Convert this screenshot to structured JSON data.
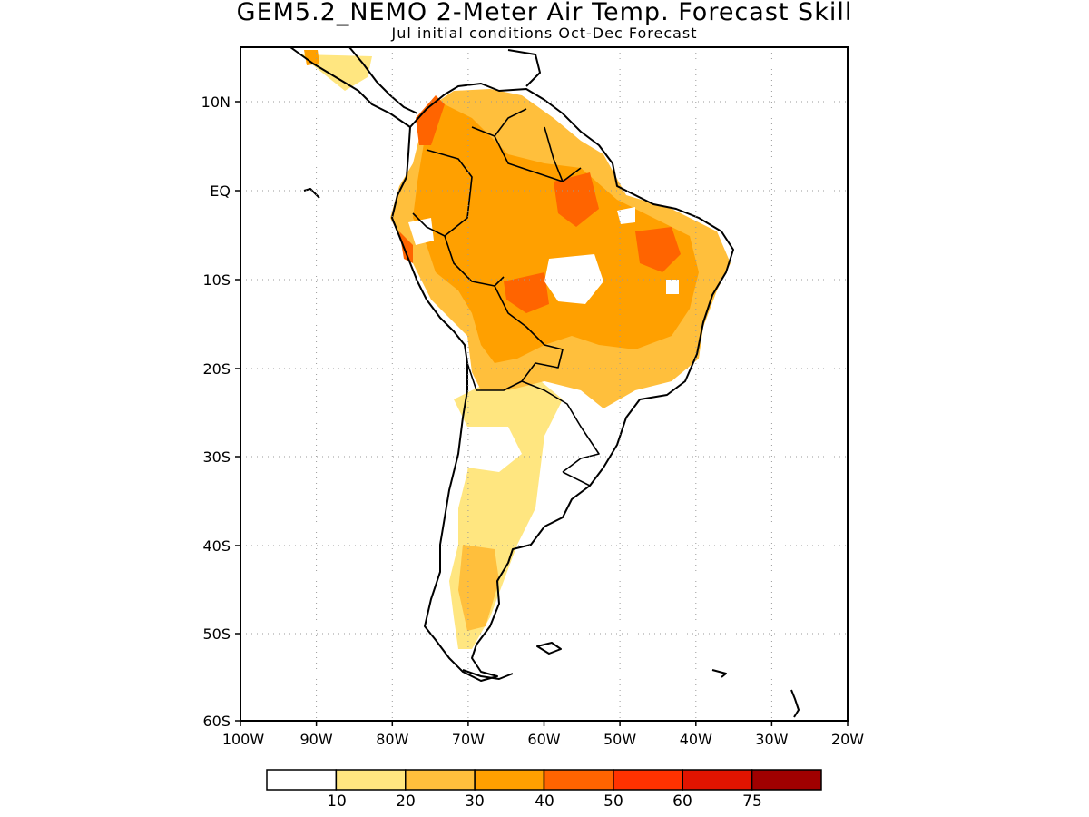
{
  "title": "GEM5.2_NEMO 2-Meter Air Temp. Forecast Skill",
  "subtitle": "Jul initial conditions   Oct-Dec Forecast",
  "map": {
    "region": "South America",
    "lon_range": [
      -100,
      -20
    ],
    "lat_range": [
      -60,
      15
    ],
    "grid": "dotted",
    "x_ticks": [
      "100W",
      "90W",
      "80W",
      "70W",
      "60W",
      "50W",
      "40W",
      "30W",
      "20W"
    ],
    "y_ticks": [
      "10N",
      "EQ",
      "10S",
      "20S",
      "30S",
      "40S",
      "50S",
      "60S"
    ]
  },
  "colorbar": {
    "labels": [
      "10",
      "20",
      "30",
      "40",
      "50",
      "60",
      "75"
    ],
    "colors": [
      "#ffffff",
      "#ffe680",
      "#ffbf3c",
      "#ffa000",
      "#ff6400",
      "#ff3200",
      "#e11400",
      "#a00000"
    ]
  }
}
